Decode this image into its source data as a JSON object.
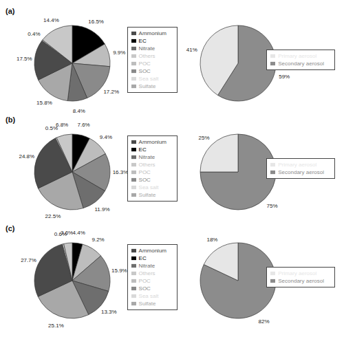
{
  "chart_data": [
    {
      "type": "pie",
      "title": "(a)",
      "categories": [
        "EC",
        "POC",
        "SOC",
        "Nitrate",
        "Sulfate",
        "Ammonium",
        "Sea salt",
        "Others"
      ],
      "values": [
        16.5,
        9.9,
        17.2,
        8.4,
        15.8,
        17.5,
        0.4,
        14.4
      ],
      "value_labels": [
        "16.5%",
        "9.9%",
        "17.2%",
        "8.4%",
        "15.8%",
        "17.5%",
        "0.4%",
        "14.4%"
      ],
      "colors": [
        "#000000",
        "#bdbdbd",
        "#8a8a8a",
        "#6e6e6e",
        "#a8a8a8",
        "#4a4a4a",
        "#d9d9d9",
        "#c8c8c8"
      ],
      "data_labels": true,
      "legend": "right"
    },
    {
      "type": "pie",
      "categories": [
        "Secondary aerosol",
        "Primary aerosol"
      ],
      "values": [
        59,
        41
      ],
      "value_labels": [
        "59%",
        "41%"
      ],
      "colors": [
        "#8c8c8c",
        "#e6e6e6"
      ],
      "data_labels": true,
      "legend": "right"
    },
    {
      "type": "pie",
      "title": "(b)",
      "categories": [
        "EC",
        "POC",
        "SOC",
        "Nitrate",
        "Sulfate",
        "Ammonium",
        "Sea salt",
        "Others"
      ],
      "values": [
        7.6,
        9.4,
        16.3,
        11.9,
        22.5,
        24.8,
        0.5,
        6.8
      ],
      "value_labels": [
        "7.6%",
        "9.4%",
        "16.3%",
        "11.9%",
        "22.5%",
        "24.8%",
        "0.5%",
        "6.8%"
      ],
      "colors": [
        "#000000",
        "#bdbdbd",
        "#8a8a8a",
        "#6e6e6e",
        "#a8a8a8",
        "#4a4a4a",
        "#d9d9d9",
        "#c8c8c8"
      ],
      "data_labels": true,
      "legend": "right"
    },
    {
      "type": "pie",
      "categories": [
        "Secondary aerosol",
        "Primary aerosol"
      ],
      "values": [
        75,
        25
      ],
      "value_labels": [
        "75%",
        "25%"
      ],
      "colors": [
        "#8c8c8c",
        "#e6e6e6"
      ],
      "data_labels": true,
      "legend": "right"
    },
    {
      "type": "pie",
      "title": "(c)",
      "categories": [
        "EC",
        "POC",
        "SOC",
        "Nitrate",
        "Sulfate",
        "Ammonium",
        "Sea salt",
        "Others"
      ],
      "values": [
        4.4,
        9.2,
        15.9,
        13.3,
        25.1,
        27.7,
        0.6,
        3.6
      ],
      "value_labels": [
        "4.4%",
        "9.2%",
        "15.9%",
        "13.3%",
        "25.1%",
        "27.7%",
        "0.6%",
        "3.6%"
      ],
      "colors": [
        "#000000",
        "#bdbdbd",
        "#8a8a8a",
        "#6e6e6e",
        "#a8a8a8",
        "#4a4a4a",
        "#d9d9d9",
        "#c8c8c8"
      ],
      "data_labels": true,
      "legend": "right"
    },
    {
      "type": "pie",
      "categories": [
        "Secondary aerosol",
        "Primary aerosol"
      ],
      "values": [
        82,
        18
      ],
      "value_labels": [
        "82%",
        "18%"
      ],
      "colors": [
        "#8c8c8c",
        "#e6e6e6"
      ],
      "data_labels": true,
      "legend": "right"
    }
  ]
}
